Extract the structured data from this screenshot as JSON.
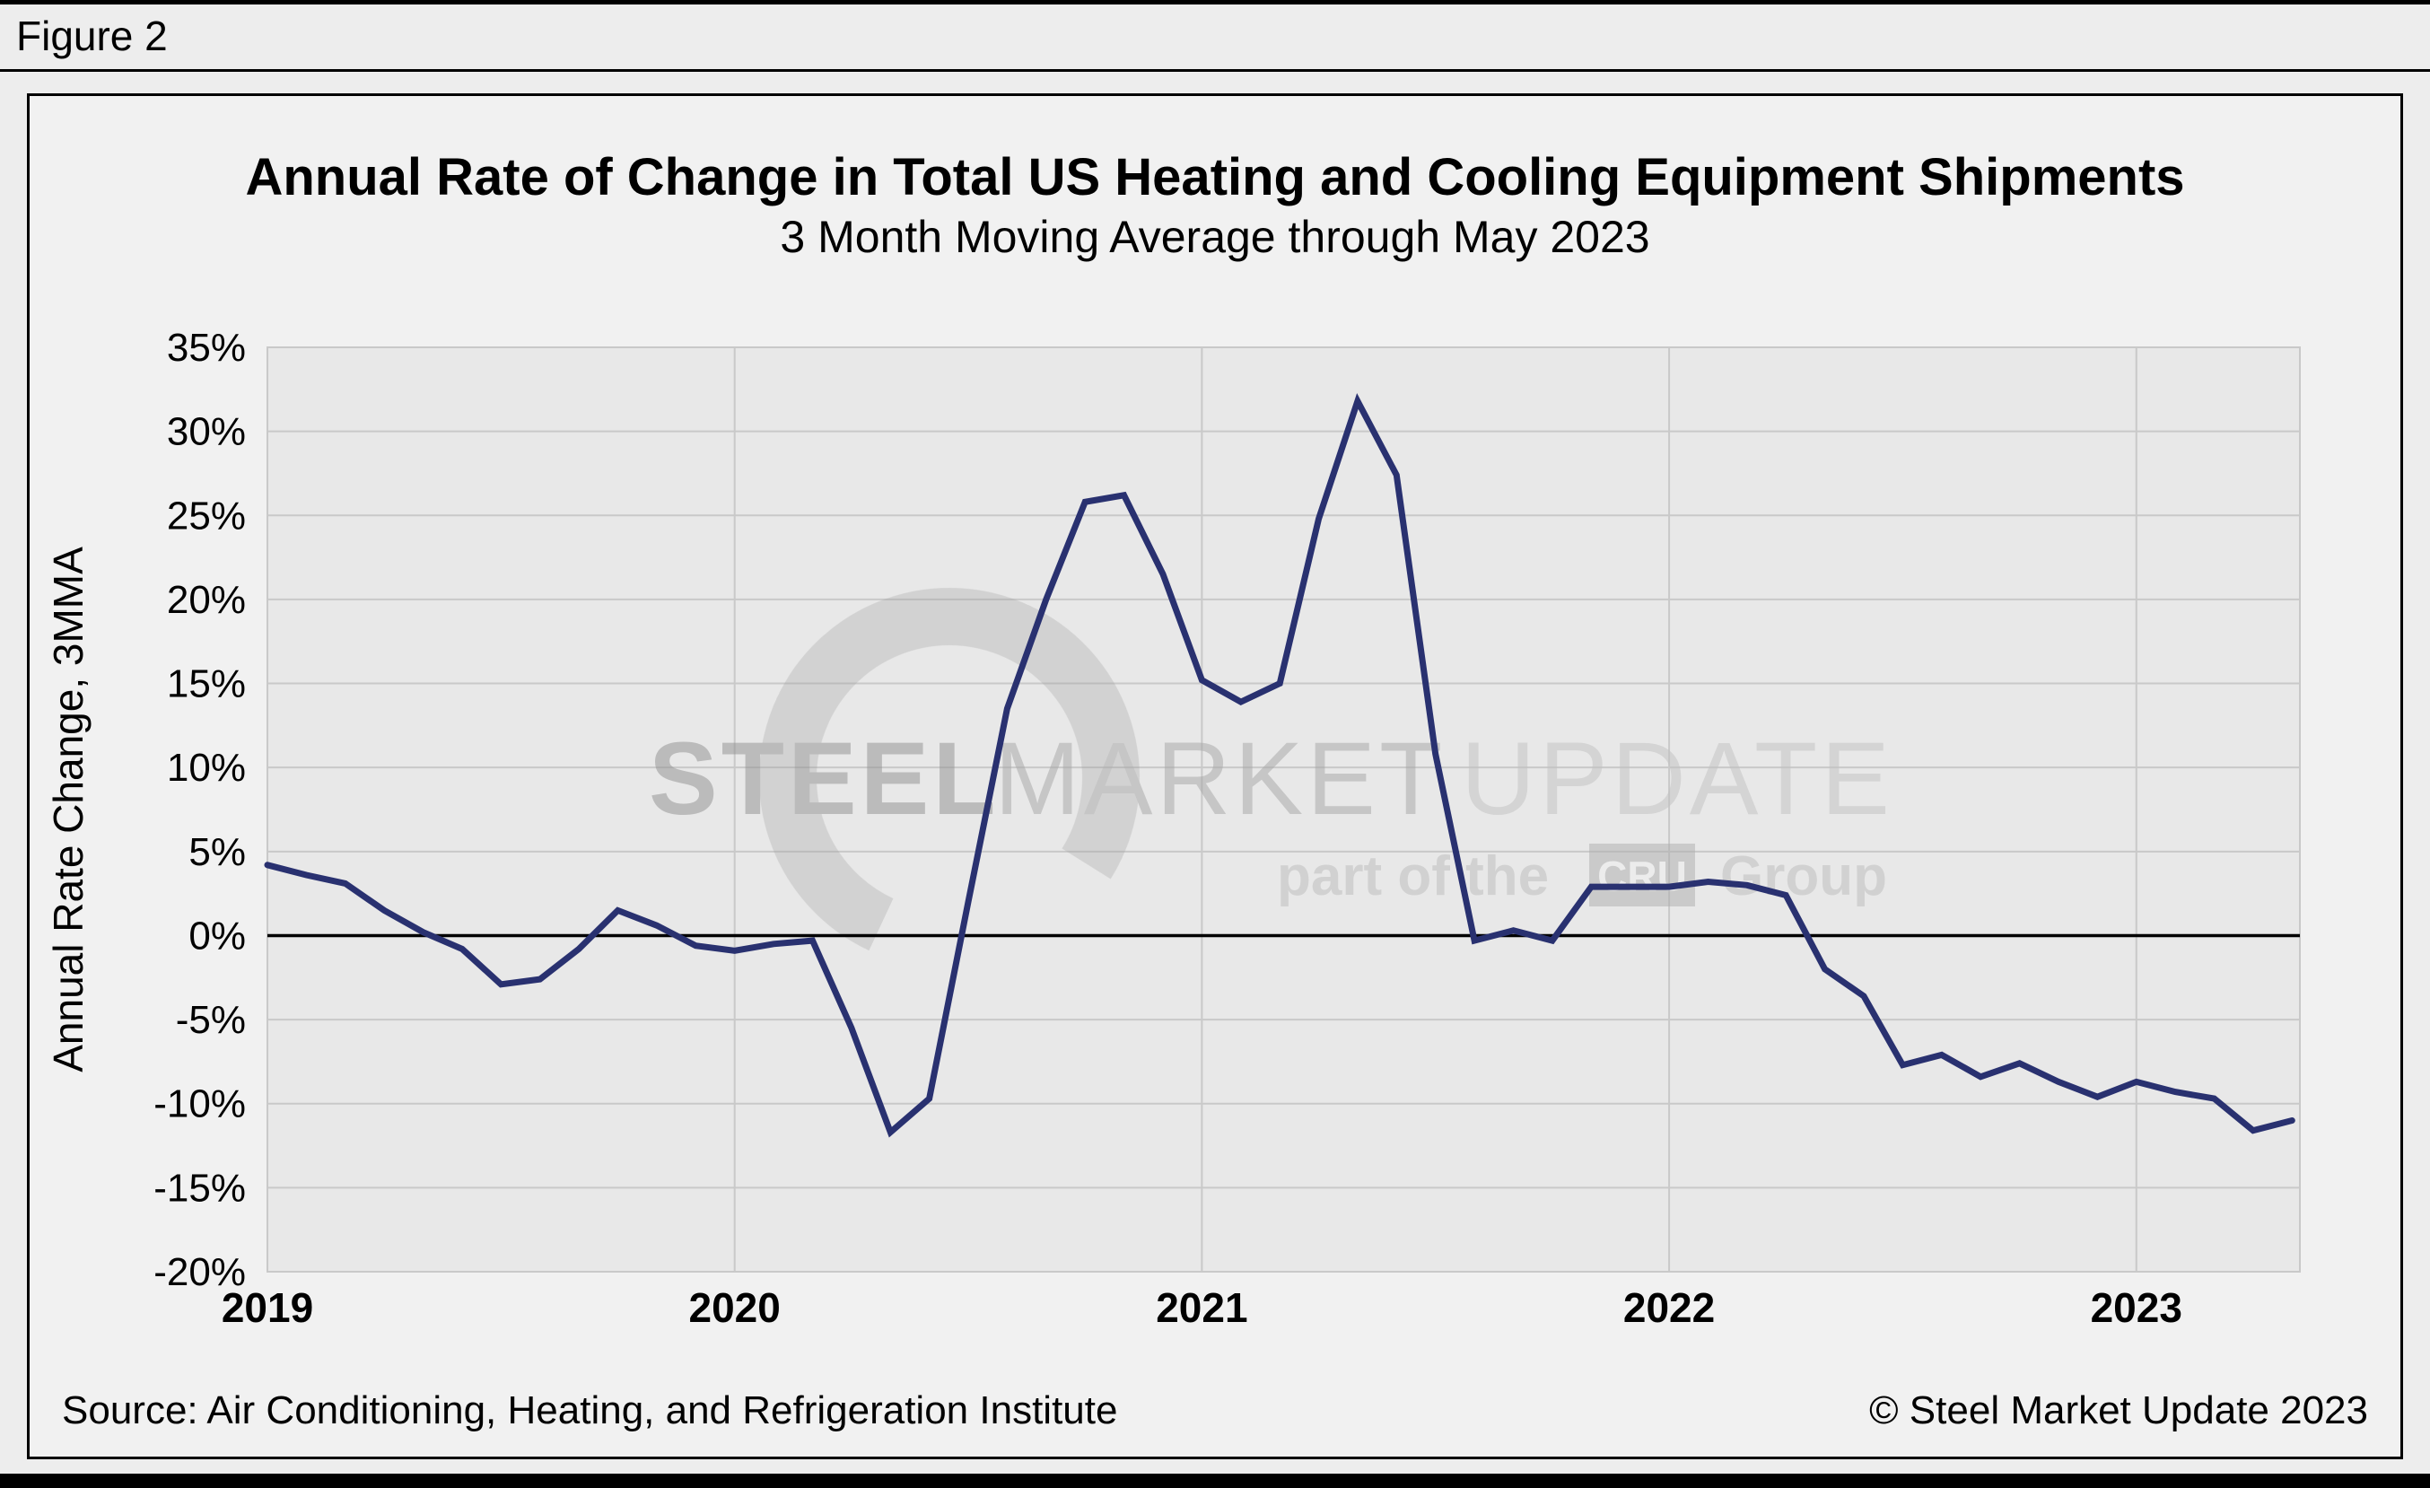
{
  "figure_label": "Figure 2",
  "title": "Annual Rate of Change in Total US Heating and Cooling Equipment Shipments",
  "subtitle": "3 Month Moving Average through May 2023",
  "footer": {
    "source": "Source: Air Conditioning, Heating, and Refrigeration Institute",
    "copyright": "© Steel Market Update 2023"
  },
  "watermark": {
    "word1": "STEEL",
    "word2": "MARKET",
    "word3": "UPDATE",
    "tagline_prefix": "part of the",
    "tagline_box": "CRU",
    "tagline_suffix": "Group"
  },
  "chart_data": {
    "type": "line",
    "title": "Annual Rate of Change in Total US Heating and Cooling Equipment Shipments",
    "subtitle": "3 Month Moving Average through May 2023",
    "xlabel": "",
    "ylabel": "Annual Rate Change, 3MMA",
    "ylim": [
      -20,
      35
    ],
    "ytick_step": 5,
    "ytick_format": "percent",
    "grid": true,
    "legend": "none",
    "x_start": "2019-01",
    "x_end": "2023-05",
    "x_frequency": "monthly",
    "x_tick_labels": [
      "2019",
      "2020",
      "2021",
      "2022",
      "2023"
    ],
    "line_color": "#293170",
    "plot_bg": "#e8e8e8",
    "grid_color": "#c9c9c9",
    "zero_line_color": "#000000",
    "series": [
      {
        "name": "Annual rate of change, 3MMA",
        "values": [
          4.2,
          3.6,
          3.1,
          1.5,
          0.2,
          -0.8,
          -2.9,
          -2.6,
          -0.8,
          1.5,
          0.6,
          -0.6,
          -0.9,
          -0.5,
          -0.3,
          -5.5,
          -11.7,
          -9.7,
          2.0,
          13.5,
          20.0,
          25.8,
          26.2,
          21.5,
          15.2,
          13.9,
          15.0,
          24.8,
          31.8,
          27.4,
          10.8,
          -0.3,
          0.3,
          -0.3,
          2.9,
          2.9,
          2.9,
          3.2,
          3.0,
          2.4,
          -2.0,
          -3.6,
          -7.7,
          -7.1,
          -8.4,
          -7.6,
          -8.7,
          -9.6,
          -8.7,
          -9.3,
          -9.7,
          -11.6,
          -11.0
        ]
      }
    ]
  }
}
